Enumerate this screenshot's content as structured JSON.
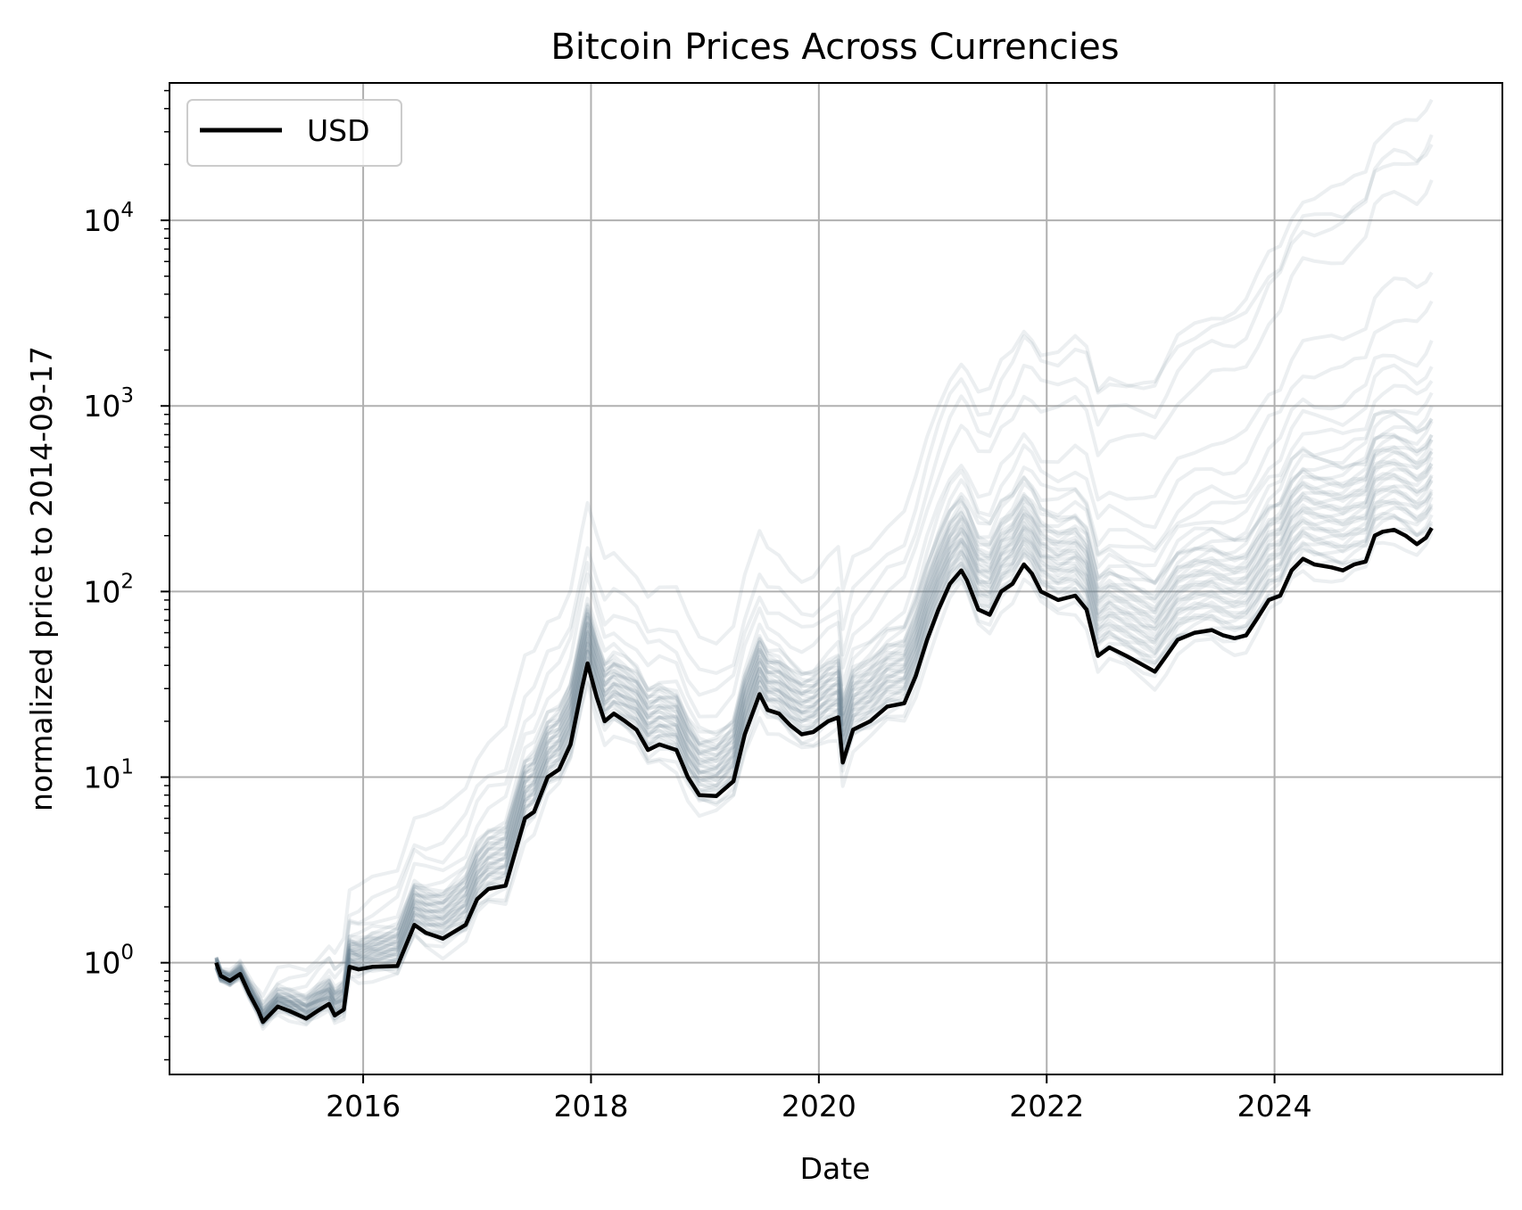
{
  "chart_data": {
    "type": "line",
    "title": "Bitcoin Prices Across Currencies",
    "xlabel": "Date",
    "ylabel": "normalized price to 2014-09-17",
    "yscale": "log",
    "xlim": [
      2014.3,
      2026.0
    ],
    "ylim": [
      0.25,
      55000
    ],
    "x_ticks": [
      {
        "value": 2016,
        "label": "2016"
      },
      {
        "value": 2018,
        "label": "2018"
      },
      {
        "value": 2020,
        "label": "2020"
      },
      {
        "value": 2022,
        "label": "2022"
      },
      {
        "value": 2024,
        "label": "2024"
      }
    ],
    "y_ticks": [
      {
        "value": 1,
        "base": "10",
        "exp": "0"
      },
      {
        "value": 10,
        "base": "10",
        "exp": "1"
      },
      {
        "value": 100,
        "base": "10",
        "exp": "2"
      },
      {
        "value": 1000,
        "base": "10",
        "exp": "3"
      },
      {
        "value": 10000,
        "base": "10",
        "exp": "4"
      }
    ],
    "grid": true,
    "legend": {
      "position": "top-left",
      "entries": [
        {
          "label": "USD",
          "color": "#000000"
        }
      ]
    },
    "highlight_series": {
      "name": "USD",
      "color": "#000000",
      "points": [
        [
          2014.71,
          1.0
        ],
        [
          2014.75,
          0.85
        ],
        [
          2014.83,
          0.8
        ],
        [
          2014.92,
          0.87
        ],
        [
          2015.0,
          0.68
        ],
        [
          2015.08,
          0.55
        ],
        [
          2015.12,
          0.48
        ],
        [
          2015.25,
          0.58
        ],
        [
          2015.35,
          0.55
        ],
        [
          2015.5,
          0.5
        ],
        [
          2015.6,
          0.55
        ],
        [
          2015.7,
          0.6
        ],
        [
          2015.75,
          0.52
        ],
        [
          2015.83,
          0.56
        ],
        [
          2015.88,
          0.95
        ],
        [
          2015.96,
          0.92
        ],
        [
          2016.08,
          0.95
        ],
        [
          2016.3,
          0.96
        ],
        [
          2016.45,
          1.6
        ],
        [
          2016.55,
          1.45
        ],
        [
          2016.7,
          1.35
        ],
        [
          2016.9,
          1.6
        ],
        [
          2017.0,
          2.2
        ],
        [
          2017.1,
          2.5
        ],
        [
          2017.25,
          2.6
        ],
        [
          2017.42,
          6.0
        ],
        [
          2017.5,
          6.5
        ],
        [
          2017.62,
          10.0
        ],
        [
          2017.72,
          11.0
        ],
        [
          2017.82,
          15.0
        ],
        [
          2017.92,
          30.0
        ],
        [
          2017.97,
          41.0
        ],
        [
          2018.05,
          27.0
        ],
        [
          2018.12,
          20.0
        ],
        [
          2018.2,
          22.0
        ],
        [
          2018.3,
          20.0
        ],
        [
          2018.4,
          18.0
        ],
        [
          2018.5,
          14.0
        ],
        [
          2018.6,
          15.0
        ],
        [
          2018.75,
          14.0
        ],
        [
          2018.85,
          10.0
        ],
        [
          2018.95,
          8.0
        ],
        [
          2019.1,
          7.9
        ],
        [
          2019.25,
          9.5
        ],
        [
          2019.35,
          17.0
        ],
        [
          2019.48,
          28.0
        ],
        [
          2019.55,
          23.0
        ],
        [
          2019.65,
          22.0
        ],
        [
          2019.75,
          19.0
        ],
        [
          2019.85,
          17.0
        ],
        [
          2019.95,
          17.5
        ],
        [
          2020.08,
          20.0
        ],
        [
          2020.17,
          21.0
        ],
        [
          2020.21,
          12.0
        ],
        [
          2020.3,
          18.0
        ],
        [
          2020.45,
          20.0
        ],
        [
          2020.6,
          24.0
        ],
        [
          2020.75,
          25.0
        ],
        [
          2020.85,
          35.0
        ],
        [
          2020.95,
          55.0
        ],
        [
          2021.05,
          80.0
        ],
        [
          2021.15,
          110.0
        ],
        [
          2021.25,
          130.0
        ],
        [
          2021.3,
          115.0
        ],
        [
          2021.4,
          80.0
        ],
        [
          2021.5,
          75.0
        ],
        [
          2021.6,
          100.0
        ],
        [
          2021.7,
          110.0
        ],
        [
          2021.8,
          140.0
        ],
        [
          2021.87,
          125.0
        ],
        [
          2021.95,
          100.0
        ],
        [
          2022.1,
          90.0
        ],
        [
          2022.25,
          95.0
        ],
        [
          2022.35,
          80.0
        ],
        [
          2022.45,
          45.0
        ],
        [
          2022.55,
          50.0
        ],
        [
          2022.7,
          45.0
        ],
        [
          2022.85,
          40.0
        ],
        [
          2022.95,
          37.0
        ],
        [
          2023.05,
          45.0
        ],
        [
          2023.15,
          55.0
        ],
        [
          2023.3,
          60.0
        ],
        [
          2023.45,
          62.0
        ],
        [
          2023.55,
          58.0
        ],
        [
          2023.65,
          56.0
        ],
        [
          2023.75,
          58.0
        ],
        [
          2023.85,
          72.0
        ],
        [
          2023.95,
          90.0
        ],
        [
          2024.05,
          95.0
        ],
        [
          2024.15,
          130.0
        ],
        [
          2024.25,
          150.0
        ],
        [
          2024.35,
          140.0
        ],
        [
          2024.5,
          135.0
        ],
        [
          2024.6,
          130.0
        ],
        [
          2024.7,
          140.0
        ],
        [
          2024.8,
          145.0
        ],
        [
          2024.88,
          200.0
        ],
        [
          2024.95,
          210.0
        ],
        [
          2025.05,
          215.0
        ],
        [
          2025.15,
          200.0
        ],
        [
          2025.25,
          180.0
        ],
        [
          2025.33,
          195.0
        ],
        [
          2025.38,
          220.0
        ]
      ]
    },
    "background_series": {
      "count": 40,
      "color": "#708090",
      "opacity": 0.13,
      "offsets_decades_2014_2020": [
        -0.1,
        -0.05,
        -0.02,
        0.0,
        0.01,
        0.03,
        0.04,
        0.05,
        0.06,
        0.07,
        0.08,
        0.09,
        0.1,
        0.11,
        0.12,
        0.12,
        0.13,
        0.14,
        0.15,
        0.16,
        0.17,
        0.18,
        0.19,
        0.2,
        0.21,
        0.22,
        0.23,
        0.24,
        0.25,
        0.26,
        0.27,
        0.28,
        0.29,
        0.3,
        0.32,
        0.35,
        0.45,
        0.55,
        0.65,
        0.85
      ],
      "offsets_decades_2025": [
        -0.05,
        0.02,
        0.05,
        0.08,
        0.1,
        0.12,
        0.14,
        0.16,
        0.18,
        0.2,
        0.22,
        0.24,
        0.26,
        0.28,
        0.3,
        0.32,
        0.34,
        0.36,
        0.38,
        0.4,
        0.42,
        0.44,
        0.46,
        0.48,
        0.5,
        0.52,
        0.55,
        0.58,
        0.62,
        0.66,
        0.7,
        0.8,
        0.9,
        1.0,
        1.2,
        1.4,
        1.9,
        2.1,
        2.3,
        2.1
      ]
    }
  }
}
